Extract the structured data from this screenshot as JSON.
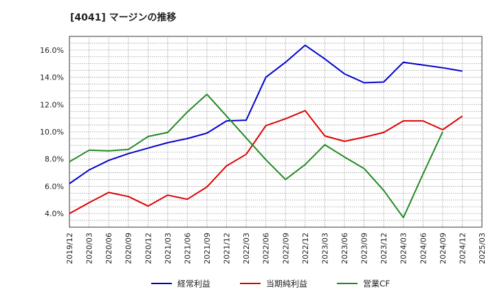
{
  "chart_data": {
    "type": "line",
    "title": "[4041]  マージンの推移",
    "xlabel": "",
    "ylabel": "",
    "ylim": [
      3.0,
      17.0
    ],
    "yticks": [
      4.0,
      6.0,
      8.0,
      10.0,
      12.0,
      14.0,
      16.0
    ],
    "ytick_labels": [
      "4.0%",
      "6.0%",
      "8.0%",
      "10.0%",
      "12.0%",
      "14.0%",
      "16.0%"
    ],
    "categories": [
      "2019/12",
      "2020/03",
      "2020/06",
      "2020/09",
      "2020/12",
      "2021/03",
      "2021/06",
      "2021/09",
      "2021/12",
      "2022/03",
      "2022/06",
      "2022/09",
      "2022/12",
      "2023/03",
      "2023/06",
      "2023/09",
      "2023/12",
      "2024/03",
      "2024/06",
      "2024/09",
      "2024/12",
      "2025/03"
    ],
    "grid": true,
    "legend_position": "bottom",
    "series": [
      {
        "name": "経常利益",
        "color": "#0000cc",
        "values": [
          6.2,
          7.2,
          7.9,
          8.4,
          8.8,
          9.2,
          9.5,
          9.9,
          10.8,
          10.85,
          14.0,
          15.1,
          16.35,
          15.35,
          14.25,
          13.6,
          13.65,
          15.1,
          14.9,
          14.7,
          14.45,
          null
        ]
      },
      {
        "name": "当期純利益",
        "color": "#dd0000",
        "values": [
          4.0,
          4.8,
          5.55,
          5.25,
          4.55,
          5.35,
          5.05,
          5.95,
          7.5,
          8.35,
          10.45,
          10.95,
          11.55,
          9.7,
          9.3,
          9.6,
          9.95,
          10.8,
          10.8,
          10.15,
          11.15,
          null
        ]
      },
      {
        "name": "営業CF",
        "color": "#228822",
        "values": [
          7.8,
          8.65,
          8.6,
          8.7,
          9.65,
          9.95,
          11.45,
          12.75,
          11.15,
          9.55,
          7.95,
          6.5,
          7.6,
          9.05,
          8.15,
          7.3,
          5.7,
          3.7,
          6.9,
          10.0,
          null,
          null
        ]
      }
    ]
  }
}
